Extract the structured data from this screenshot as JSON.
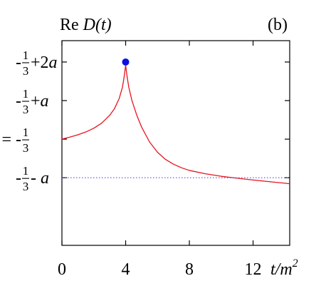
{
  "chart_data": {
    "type": "line",
    "panel_label": "(b)",
    "title": {
      "prefix": "Re",
      "expr": "D(t)"
    },
    "xlabel": {
      "main": "t/m",
      "sup": "2"
    },
    "xlim": [
      0,
      14.3
    ],
    "ylim": [
      -0.93,
      0.22
    ],
    "x_ticks": [
      0,
      4,
      8,
      12
    ],
    "x_tick_labels": [
      "0",
      "4",
      "8",
      "12"
    ],
    "y_ticks": [
      {
        "value": 0.1,
        "pre": "-",
        "num": "1",
        "den": "3",
        "post": "+2a"
      },
      {
        "value": -0.1167,
        "pre": "-",
        "num": "1",
        "den": "3",
        "post": "+a"
      },
      {
        "value": -0.3333,
        "pre": "D = -",
        "num": "1",
        "den": "3",
        "post": ""
      },
      {
        "value": -0.55,
        "pre": "-",
        "num": "1",
        "den": "3",
        "post": "- a"
      }
    ],
    "grid": false,
    "colors": {
      "curve": "#e8141e",
      "marker": "#0b12e0",
      "reference": "#4d4dff",
      "axes": "#000000"
    },
    "series": [
      {
        "style": "solid",
        "x": [
          0,
          0.5,
          1,
          1.5,
          2,
          2.5,
          3,
          3.3,
          3.6,
          3.8,
          3.9,
          3.95,
          4.0,
          4.05,
          4.1,
          4.2,
          4.4,
          4.7,
          5,
          5.5,
          6,
          6.5,
          7,
          7.5,
          8,
          9,
          10,
          11,
          12,
          13,
          14,
          14.3
        ],
        "y": [
          -0.333,
          -0.322,
          -0.309,
          -0.293,
          -0.272,
          -0.243,
          -0.199,
          -0.162,
          -0.104,
          -0.041,
          0.013,
          0.046,
          0.083,
          0.046,
          0.013,
          -0.043,
          -0.118,
          -0.199,
          -0.265,
          -0.349,
          -0.407,
          -0.447,
          -0.474,
          -0.494,
          -0.509,
          -0.528,
          -0.542,
          -0.553,
          -0.563,
          -0.572,
          -0.581,
          -0.584
        ]
      },
      {
        "style": "dotted",
        "x": [
          0,
          14.3
        ],
        "y": [
          -0.55,
          -0.55
        ]
      }
    ],
    "marker": {
      "x": 4.0,
      "y": 0.1
    }
  }
}
